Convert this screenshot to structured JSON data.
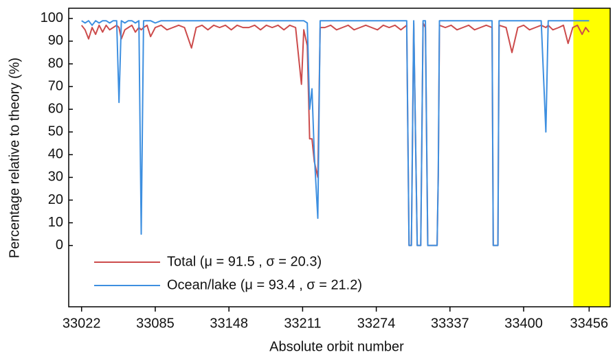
{
  "chart_data": {
    "type": "line",
    "xlabel": "Absolute orbit number",
    "ylabel": "Percentage relative to theory (%)",
    "xlim": [
      33011,
      33474
    ],
    "ylim": [
      -27,
      104.5
    ],
    "xticks": [
      33022,
      33085,
      33148,
      33211,
      33274,
      33337,
      33400,
      33456
    ],
    "yticks": [
      0,
      10,
      20,
      30,
      40,
      50,
      60,
      70,
      80,
      90,
      100
    ],
    "highlight": {
      "xlim": [
        33442.5,
        33474
      ],
      "color": "#ffff00"
    },
    "legend": "lower left",
    "x": [
      33022,
      33025,
      33028,
      33031,
      33034,
      33037,
      33040,
      33043,
      33046,
      33049,
      33052,
      33054,
      33056,
      33059,
      33062,
      33065,
      33068,
      33071,
      33073,
      33075,
      33078,
      33081,
      33085,
      33090,
      33095,
      33100,
      33105,
      33110,
      33116,
      33120,
      33125,
      33130,
      33135,
      33140,
      33145,
      33150,
      33155,
      33160,
      33165,
      33170,
      33175,
      33180,
      33185,
      33190,
      33195,
      33200,
      33205,
      33210,
      33212,
      33215,
      33217,
      33219,
      33221,
      33224,
      33226,
      33230,
      33235,
      33240,
      33245,
      33250,
      33255,
      33260,
      33265,
      33270,
      33275,
      33280,
      33285,
      33290,
      33295,
      33300,
      33302,
      33304,
      33306,
      33309,
      33312,
      33314,
      33316,
      33318,
      33326,
      33327,
      33328,
      33333,
      33338,
      33343,
      33348,
      33353,
      33358,
      33363,
      33368,
      33373,
      33374,
      33378,
      33379,
      33385,
      33390,
      33395,
      33400,
      33405,
      33410,
      33415,
      33419,
      33421,
      33425,
      33430,
      33434,
      33438,
      33442,
      33446,
      33450,
      33453,
      33456
    ],
    "series": [
      {
        "name": "Total (μ = 91.5 , σ = 20.3)",
        "color": "#cc4b4b",
        "values": [
          97,
          95,
          91,
          96,
          93,
          97,
          94,
          97,
          95,
          96,
          97,
          96,
          91,
          95,
          96,
          97,
          94,
          96,
          95,
          96,
          97,
          92,
          96,
          97,
          95,
          96,
          97,
          96,
          87,
          96,
          97,
          95,
          97,
          96,
          97,
          95,
          97,
          96,
          96,
          97,
          95,
          97,
          96,
          97,
          95,
          97,
          96,
          71,
          95,
          88,
          47,
          47,
          37,
          30,
          96,
          96,
          97,
          95,
          96,
          97,
          95,
          96,
          97,
          96,
          95,
          97,
          96,
          97,
          95,
          97,
          0,
          0,
          98,
          0,
          0,
          98,
          96,
          0,
          0,
          31,
          97,
          96,
          97,
          95,
          96,
          97,
          95,
          96,
          97,
          96,
          0,
          0,
          97,
          96,
          85,
          96,
          97,
          95,
          96,
          97,
          96,
          97,
          95,
          96,
          97,
          89,
          96,
          97,
          93,
          96,
          94
        ]
      },
      {
        "name": "Ocean/lake (μ = 93.4 , σ = 21.2)",
        "color": "#3d8fe0",
        "values": [
          99,
          98,
          99,
          97,
          99,
          98,
          99,
          99,
          98,
          99,
          99,
          63,
          99,
          98,
          99,
          99,
          98,
          99,
          5,
          99,
          99,
          99,
          98,
          99,
          99,
          99,
          99,
          99,
          99,
          99,
          99,
          99,
          99,
          99,
          99,
          99,
          99,
          99,
          99,
          99,
          99,
          99,
          99,
          99,
          99,
          99,
          99,
          99,
          99,
          98,
          60,
          69,
          40,
          12,
          99,
          99,
          99,
          99,
          99,
          99,
          99,
          99,
          99,
          99,
          99,
          99,
          99,
          99,
          99,
          99,
          0,
          0,
          99,
          0,
          0,
          99,
          99,
          0,
          0,
          31,
          99,
          99,
          99,
          99,
          99,
          99,
          99,
          99,
          99,
          99,
          0,
          0,
          99,
          99,
          99,
          99,
          99,
          99,
          99,
          99,
          50,
          99,
          99,
          99,
          99,
          99,
          99,
          99,
          99,
          99,
          99
        ]
      }
    ]
  }
}
